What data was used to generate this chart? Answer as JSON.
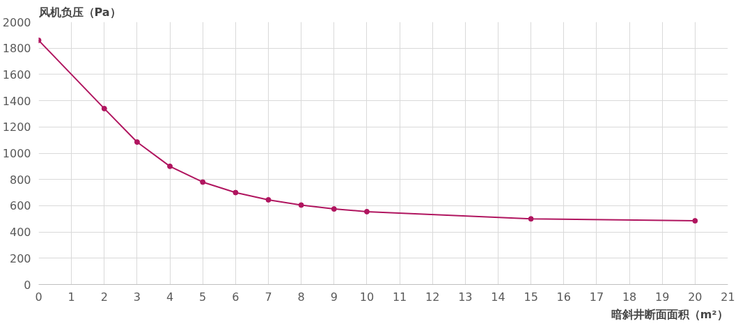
{
  "chart_data": {
    "type": "line",
    "xlabel": "暗斜井断面面积（m²）",
    "ylabel": "风机负压（Pa）",
    "x": [
      0,
      2,
      3,
      4,
      5,
      6,
      7,
      8,
      9,
      10,
      15,
      20
    ],
    "series": [
      {
        "color": "#b0155f",
        "values": [
          1860,
          1340,
          1085,
          900,
          780,
          700,
          645,
          605,
          575,
          555,
          500,
          485
        ]
      }
    ],
    "xlim": [
      0,
      21
    ],
    "xticks": [
      0,
      1,
      2,
      3,
      4,
      5,
      6,
      7,
      8,
      9,
      10,
      11,
      12,
      13,
      14,
      15,
      16,
      17,
      18,
      19,
      20,
      21
    ],
    "ylim": [
      0,
      2000
    ],
    "yticks": [
      0,
      200,
      400,
      600,
      800,
      1000,
      1200,
      1400,
      1600,
      1800,
      2000
    ],
    "grid": true,
    "marker": "circle",
    "line_style": "solid"
  }
}
